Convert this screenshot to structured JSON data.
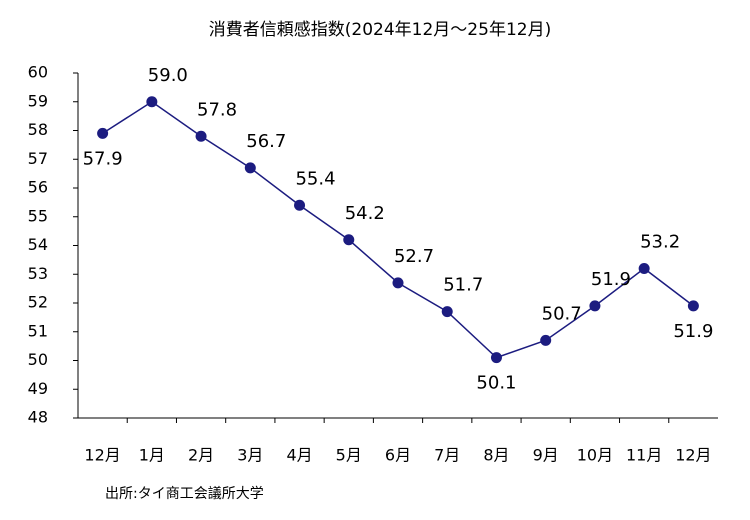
{
  "chart_data": {
    "type": "line",
    "title": "消費者信頼感指数(2024年12月～25年12月)",
    "categories": [
      "12月",
      "1月",
      "2月",
      "3月",
      "4月",
      "5月",
      "6月",
      "7月",
      "8月",
      "9月",
      "10月",
      "11月",
      "12月"
    ],
    "values": [
      57.9,
      59.0,
      57.8,
      56.7,
      55.4,
      54.2,
      52.7,
      51.7,
      50.1,
      50.7,
      51.9,
      53.2,
      51.9
    ],
    "value_labels": [
      "57.9",
      "59.0",
      "57.8",
      "56.7",
      "55.4",
      "54.2",
      "52.7",
      "51.7",
      "50.1",
      "50.7",
      "51.9",
      "53.2",
      "51.9"
    ],
    "color": "#1c1c80",
    "ylim": [
      48,
      60
    ],
    "yticks": [
      48,
      49,
      50,
      51,
      52,
      53,
      54,
      55,
      56,
      57,
      58,
      59,
      60
    ],
    "grid": false,
    "source": "出所:タイ商工会議所大学"
  }
}
